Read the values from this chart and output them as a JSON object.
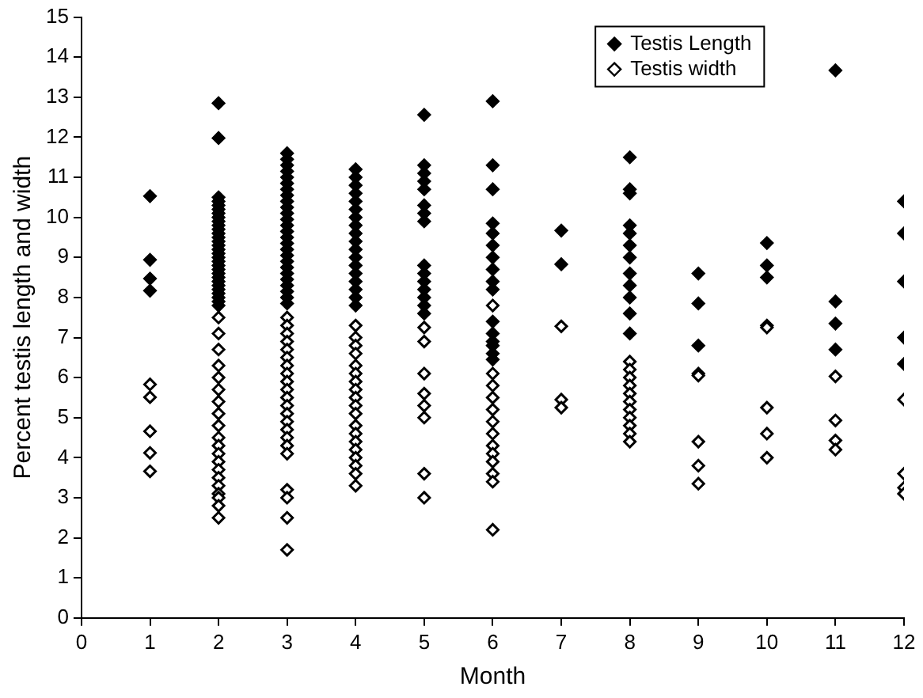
{
  "chart_data": {
    "type": "scatter",
    "xlabel": "Month",
    "ylabel": "Percent testis length and width",
    "xlim": [
      0,
      12
    ],
    "xticks": [
      0,
      1,
      2,
      3,
      4,
      5,
      6,
      7,
      8,
      9,
      10,
      11,
      12
    ],
    "ylim": [
      0,
      15
    ],
    "yticks": [
      0,
      1,
      2,
      3,
      4,
      5,
      6,
      7,
      8,
      9,
      10,
      11,
      12,
      13,
      14,
      15
    ],
    "grid": false,
    "legend": "top right",
    "marker": "diamond",
    "series": [
      {
        "name": "Testis Length",
        "color": "#000000",
        "x": [
          1,
          1,
          1,
          1,
          2,
          2,
          2,
          2,
          2,
          2,
          2,
          2,
          2,
          2,
          2,
          2,
          2,
          2,
          2,
          2,
          2,
          2,
          2,
          2,
          2,
          2,
          2,
          2,
          2,
          2,
          2,
          2,
          2,
          2,
          3,
          3,
          3,
          3,
          3,
          3,
          3,
          3,
          3,
          3,
          3,
          3,
          3,
          3,
          3,
          3,
          3,
          3,
          3,
          3,
          3,
          3,
          3,
          3,
          3,
          3,
          4,
          4,
          4,
          4,
          4,
          4,
          4,
          4,
          4,
          4,
          4,
          4,
          4,
          4,
          4,
          4,
          4,
          4,
          5,
          5,
          5,
          5,
          5,
          5,
          5,
          5,
          5,
          5,
          5,
          5,
          5,
          5,
          5,
          6,
          6,
          6,
          6,
          6,
          6,
          6,
          6,
          6,
          6,
          6,
          6,
          6,
          6,
          6,
          6,
          7,
          7,
          8,
          8,
          8,
          8,
          8,
          8,
          8,
          8,
          8,
          8,
          8,
          8,
          9,
          9,
          9,
          10,
          10,
          10,
          11,
          11,
          11,
          11,
          12,
          12,
          12,
          12,
          12
        ],
        "values": [
          10.53,
          8.94,
          8.47,
          8.17,
          12.85,
          11.98,
          10.5,
          10.4,
          10.3,
          10.2,
          10.1,
          10.0,
          9.9,
          9.8,
          9.7,
          9.6,
          9.5,
          9.4,
          9.3,
          9.2,
          9.1,
          9.0,
          8.9,
          8.8,
          8.7,
          8.6,
          8.5,
          8.4,
          8.3,
          8.2,
          8.1,
          8.0,
          7.9,
          7.8,
          11.6,
          11.45,
          11.3,
          11.15,
          11.0,
          10.85,
          10.7,
          10.55,
          10.4,
          10.25,
          10.1,
          9.95,
          9.8,
          9.65,
          9.5,
          9.35,
          9.2,
          9.05,
          8.9,
          8.75,
          8.6,
          8.45,
          8.3,
          8.15,
          8.0,
          7.85,
          11.2,
          11.0,
          10.8,
          10.6,
          10.4,
          10.2,
          10.0,
          9.8,
          9.6,
          9.4,
          9.2,
          9.0,
          8.8,
          8.6,
          8.4,
          8.2,
          8.0,
          7.8,
          12.56,
          11.3,
          11.1,
          10.9,
          10.7,
          10.3,
          10.1,
          9.9,
          8.8,
          8.6,
          8.4,
          8.2,
          8.0,
          7.8,
          7.6,
          12.9,
          11.3,
          10.7,
          9.85,
          9.6,
          9.3,
          9.0,
          8.7,
          8.4,
          8.2,
          7.4,
          7.1,
          6.9,
          6.8,
          6.6,
          6.45,
          9.67,
          8.83,
          11.5,
          10.7,
          10.6,
          9.8,
          9.6,
          9.3,
          9.0,
          8.6,
          8.3,
          8.0,
          7.6,
          7.1,
          8.6,
          7.85,
          6.8,
          9.36,
          8.8,
          8.5,
          13.67,
          7.9,
          7.35,
          6.7,
          10.4,
          9.6,
          8.4,
          7.0,
          6.34
        ]
      },
      {
        "name": "Testis width",
        "color": "#ffffff",
        "x": [
          1,
          1,
          1,
          1,
          1,
          2,
          2,
          2,
          2,
          2,
          2,
          2,
          2,
          2,
          2,
          2,
          2,
          2,
          2,
          2,
          2,
          2,
          2,
          2,
          2,
          3,
          3,
          3,
          3,
          3,
          3,
          3,
          3,
          3,
          3,
          3,
          3,
          3,
          3,
          3,
          3,
          3,
          3,
          3,
          3,
          3,
          3,
          4,
          4,
          4,
          4,
          4,
          4,
          4,
          4,
          4,
          4,
          4,
          4,
          4,
          4,
          4,
          4,
          4,
          4,
          4,
          5,
          5,
          5,
          5,
          5,
          5,
          5,
          5,
          6,
          6,
          6,
          6,
          6,
          6,
          6,
          6,
          6,
          6,
          6,
          6,
          6,
          7,
          7,
          7,
          8,
          8,
          8,
          8,
          8,
          8,
          8,
          8,
          8,
          8,
          8,
          9,
          9,
          9,
          9,
          9,
          10,
          10,
          10,
          10,
          10,
          11,
          11,
          11,
          11,
          12,
          12,
          12,
          12
        ],
        "values": [
          5.83,
          5.51,
          4.66,
          4.12,
          3.66,
          7.5,
          7.1,
          6.7,
          6.3,
          6.0,
          5.7,
          5.4,
          5.1,
          4.8,
          4.5,
          4.3,
          4.1,
          3.9,
          3.7,
          3.5,
          3.3,
          3.1,
          3.0,
          2.8,
          2.5,
          7.5,
          7.3,
          7.1,
          6.9,
          6.7,
          6.5,
          6.3,
          6.1,
          5.9,
          5.7,
          5.5,
          5.3,
          5.1,
          4.9,
          4.7,
          4.5,
          4.3,
          4.1,
          3.2,
          3.0,
          2.5,
          1.7,
          7.3,
          7.0,
          6.8,
          6.6,
          6.3,
          6.1,
          5.9,
          5.7,
          5.5,
          5.3,
          5.1,
          4.8,
          4.6,
          4.4,
          4.2,
          4.0,
          3.8,
          3.6,
          3.3,
          7.25,
          6.9,
          6.1,
          5.6,
          5.3,
          5.0,
          3.6,
          3.0,
          7.8,
          6.1,
          5.8,
          5.5,
          5.2,
          4.9,
          4.6,
          4.3,
          4.1,
          3.9,
          3.6,
          3.4,
          2.2,
          7.28,
          5.45,
          5.25,
          6.4,
          6.2,
          6.0,
          5.8,
          5.6,
          5.4,
          5.2,
          5.0,
          4.8,
          4.6,
          4.4,
          6.1,
          6.05,
          4.4,
          3.8,
          3.35,
          7.3,
          7.25,
          5.25,
          4.6,
          4.0,
          6.03,
          4.93,
          4.43,
          4.2,
          5.45,
          3.6,
          3.25,
          3.1
        ]
      }
    ]
  }
}
